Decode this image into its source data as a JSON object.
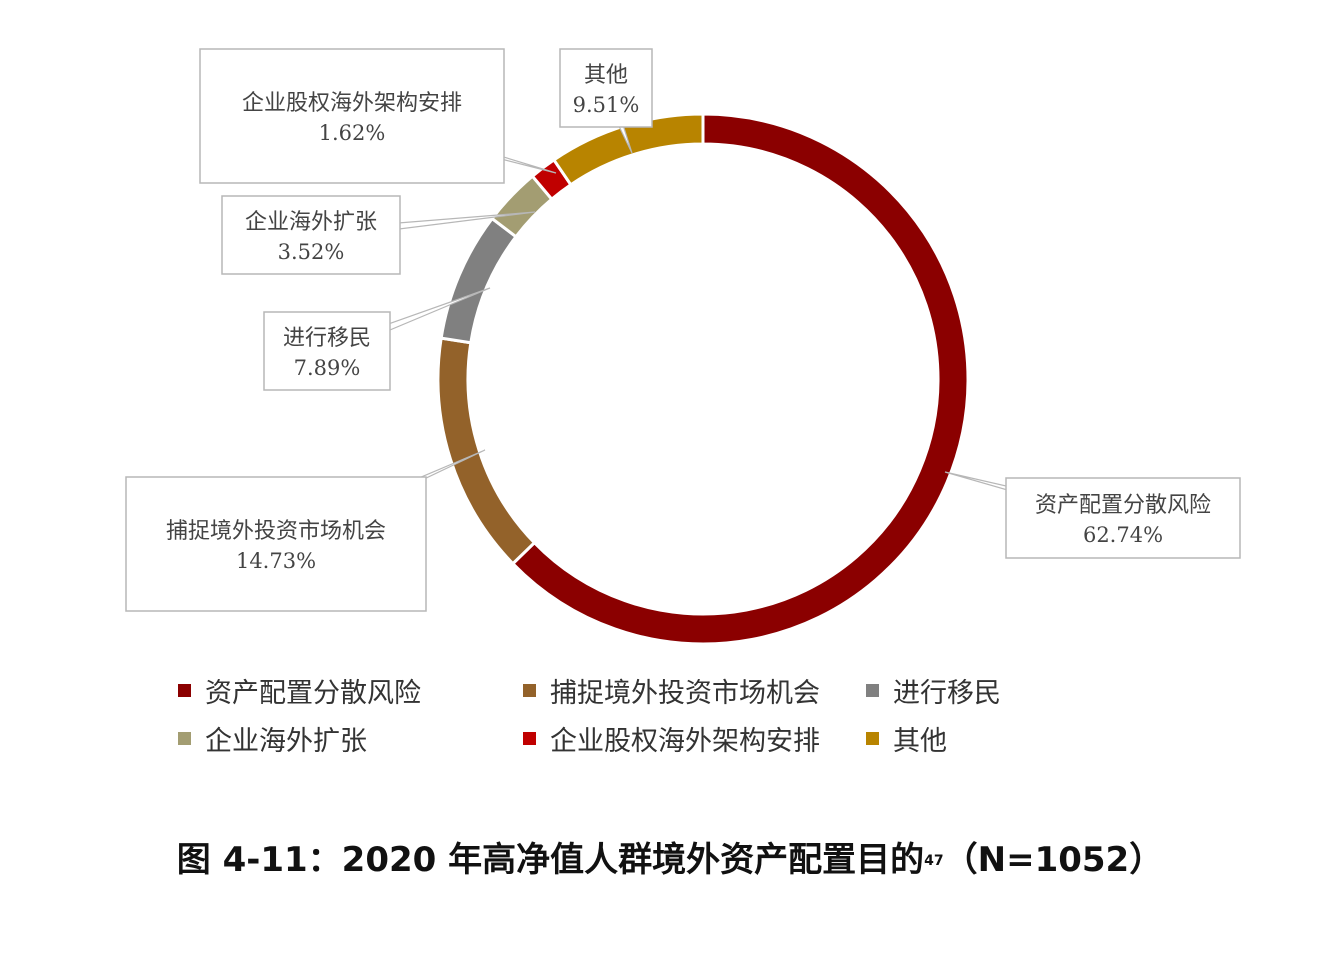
{
  "chart_data": {
    "type": "pie",
    "donut": true,
    "categories": [
      "资产配置分散风险",
      "捕捉境外投资市场机会",
      "进行移民",
      "企业海外扩张",
      "企业股权海外架构安排",
      "其他"
    ],
    "values": [
      62.74,
      14.73,
      7.89,
      3.52,
      1.62,
      9.51
    ],
    "value_labels": [
      "62.74%",
      "14.73%",
      "7.89%",
      "3.52%",
      "1.62%",
      "9.51%"
    ],
    "colors": [
      "#8b0000",
      "#93622a",
      "#808080",
      "#a39d72",
      "#c00000",
      "#b88400"
    ],
    "legend_position": "bottom",
    "title": "图 4-11：2020 年高净值人群境外资产配置目的",
    "title_sup": "47",
    "title_suffix": "（N=1052）"
  }
}
